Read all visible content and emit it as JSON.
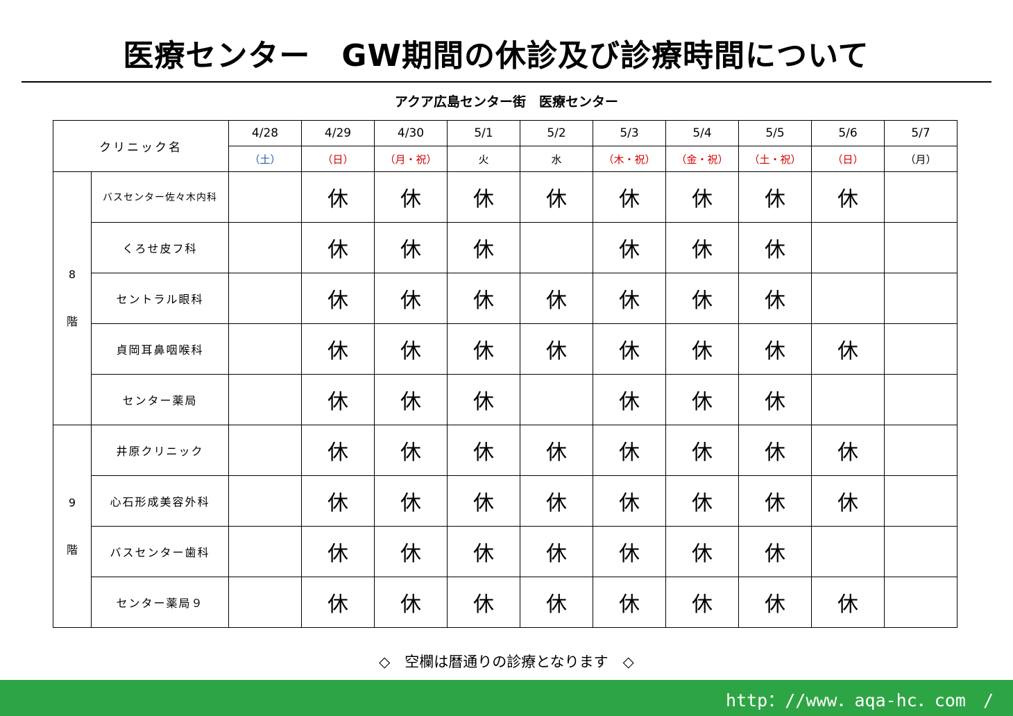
{
  "title": "医療センター　GW期間の休診及び診療時間について",
  "subtitle": "アクア広島センター街　医療センター",
  "table": {
    "clinic_header": "クリニック名",
    "columns": [
      {
        "date": "4/28",
        "day": "（土）",
        "day_color": "#1f5fa8"
      },
      {
        "date": "4/29",
        "day": "（日）",
        "day_color": "#d40000"
      },
      {
        "date": "4/30",
        "day": "（月・祝）",
        "day_color": "#d40000"
      },
      {
        "date": "5/1",
        "day": "火",
        "day_color": "#000000"
      },
      {
        "date": "5/2",
        "day": "水",
        "day_color": "#000000"
      },
      {
        "date": "5/3",
        "day": "（木・祝）",
        "day_color": "#d40000"
      },
      {
        "date": "5/4",
        "day": "（金・祝）",
        "day_color": "#d40000"
      },
      {
        "date": "5/5",
        "day": "（土・祝）",
        "day_color": "#d40000"
      },
      {
        "date": "5/6",
        "day": "（日）",
        "day_color": "#d40000"
      },
      {
        "date": "5/7",
        "day": "（月）",
        "day_color": "#000000"
      }
    ],
    "floors": [
      {
        "label_top": "8",
        "label_bottom": "階",
        "clinics": [
          {
            "name": "バスセンター佐々木内科",
            "cells": [
              "",
              "休",
              "休",
              "休",
              "休",
              "休",
              "休",
              "休",
              "休",
              ""
            ]
          },
          {
            "name": "くろせ皮フ科",
            "cells": [
              "",
              "休",
              "休",
              "休",
              "",
              "休",
              "休",
              "休",
              "",
              ""
            ]
          },
          {
            "name": "セントラル眼科",
            "cells": [
              "",
              "休",
              "休",
              "休",
              "休",
              "休",
              "休",
              "休",
              "",
              ""
            ]
          },
          {
            "name": "貞岡耳鼻咽喉科",
            "cells": [
              "",
              "休",
              "休",
              "休",
              "休",
              "休",
              "休",
              "休",
              "休",
              ""
            ]
          },
          {
            "name": "センター薬局",
            "cells": [
              "",
              "休",
              "休",
              "休",
              "",
              "休",
              "休",
              "休",
              "",
              ""
            ]
          }
        ]
      },
      {
        "label_top": "9",
        "label_bottom": "階",
        "clinics": [
          {
            "name": "井原クリニック",
            "cells": [
              "",
              "休",
              "休",
              "休",
              "休",
              "休",
              "休",
              "休",
              "休",
              ""
            ]
          },
          {
            "name": "心石形成美容外科",
            "cells": [
              "",
              "休",
              "休",
              "休",
              "休",
              "休",
              "休",
              "休",
              "休",
              ""
            ]
          },
          {
            "name": "バスセンター歯科",
            "cells": [
              "",
              "休",
              "休",
              "休",
              "休",
              "休",
              "休",
              "休",
              "",
              ""
            ]
          },
          {
            "name": "センター薬局９",
            "cells": [
              "",
              "休",
              "休",
              "休",
              "休",
              "休",
              "休",
              "休",
              "休",
              ""
            ]
          }
        ]
      }
    ]
  },
  "footnote": "◇　空欄は暦通りの診療となります　◇",
  "footer": {
    "url": "http：//www．aqa-hc．com　/",
    "bar_color": "#2ea545"
  }
}
